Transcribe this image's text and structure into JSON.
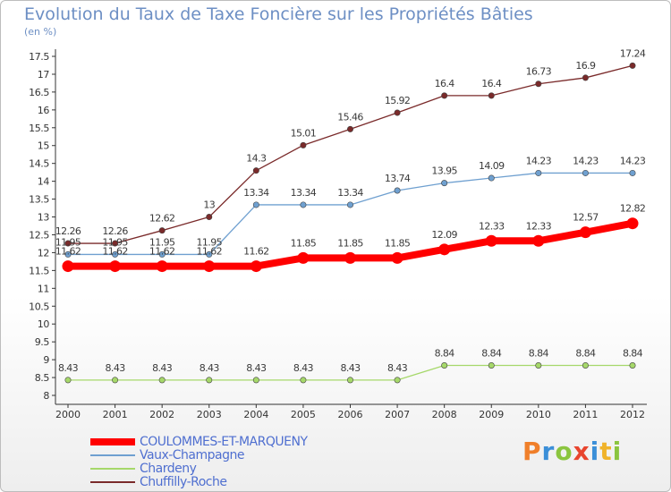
{
  "header": {
    "title": "Evolution du Taux de Taxe Foncière sur les Propriétés Bâties",
    "subtitle": "(en %)"
  },
  "logo": {
    "text": "Proxiti",
    "colors": [
      "#f07f2a",
      "#3b8fd8",
      "#8bc53f",
      "#e8452e",
      "#3b8fd8",
      "#f0b32a",
      "#8bc53f"
    ]
  },
  "chart_data": {
    "type": "line",
    "x": [
      "2000",
      "2001",
      "2002",
      "2003",
      "2004",
      "2005",
      "2006",
      "2007",
      "2008",
      "2009",
      "2010",
      "2011",
      "2012"
    ],
    "ylim": [
      8,
      17.5
    ],
    "yticks": [
      "8",
      "8.5",
      "9",
      "9.5",
      "10",
      "10.5",
      "11",
      "11.5",
      "12",
      "12.5",
      "13",
      "13.5",
      "14",
      "14.5",
      "15",
      "15.5",
      "16",
      "16.5",
      "17",
      "17.5"
    ],
    "grid": false,
    "legend_position": "bottom-left",
    "series": [
      {
        "name": "Chuffilly-Roche",
        "color": "#7a2a2a",
        "values": [
          12.26,
          12.26,
          12.62,
          13,
          14.3,
          15.01,
          15.46,
          15.92,
          16.4,
          16.4,
          16.73,
          16.9,
          17.24
        ],
        "labels": [
          "12.26",
          "12.26",
          "12.62",
          "13",
          "14.3",
          "15.01",
          "15.46",
          "15.92",
          "16.4",
          "16.4",
          "16.73",
          "16.9",
          "17.24"
        ]
      },
      {
        "name": "Vaux-Champagne",
        "color": "#6fa0d0",
        "values": [
          11.95,
          11.95,
          11.95,
          11.95,
          13.34,
          13.34,
          13.34,
          13.74,
          13.95,
          14.09,
          14.23,
          14.23,
          14.23
        ],
        "labels": [
          "11.95",
          "11.95",
          "11.95",
          "11.95",
          "13.34",
          "13.34",
          "13.34",
          "13.74",
          "13.95",
          "14.09",
          "14.23",
          "14.23",
          "14.23"
        ]
      },
      {
        "name": "Chardeny",
        "color": "#a6d86a",
        "values": [
          8.43,
          8.43,
          8.43,
          8.43,
          8.43,
          8.43,
          8.43,
          8.43,
          8.84,
          8.84,
          8.84,
          8.84,
          8.84
        ],
        "labels": [
          "8.43",
          "8.43",
          "8.43",
          "8.43",
          "8.43",
          "8.43",
          "8.43",
          "8.43",
          "8.84",
          "8.84",
          "8.84",
          "8.84",
          "8.84"
        ]
      },
      {
        "name": "COULOMMES-ET-MARQUENY",
        "color": "#ff0000",
        "values": [
          11.62,
          11.62,
          11.62,
          11.62,
          11.62,
          11.85,
          11.85,
          11.85,
          12.09,
          12.33,
          12.33,
          12.57,
          12.82
        ],
        "labels": [
          "11.62",
          "11.62",
          "11.62",
          "11.62",
          "11.62",
          "11.85",
          "11.85",
          "11.85",
          "12.09",
          "12.33",
          "12.33",
          "12.57",
          "12.82"
        ]
      }
    ],
    "legend": [
      "COULOMMES-ET-MARQUENY",
      "Vaux-Champagne",
      "Chardeny",
      "Chuffilly-Roche"
    ]
  }
}
